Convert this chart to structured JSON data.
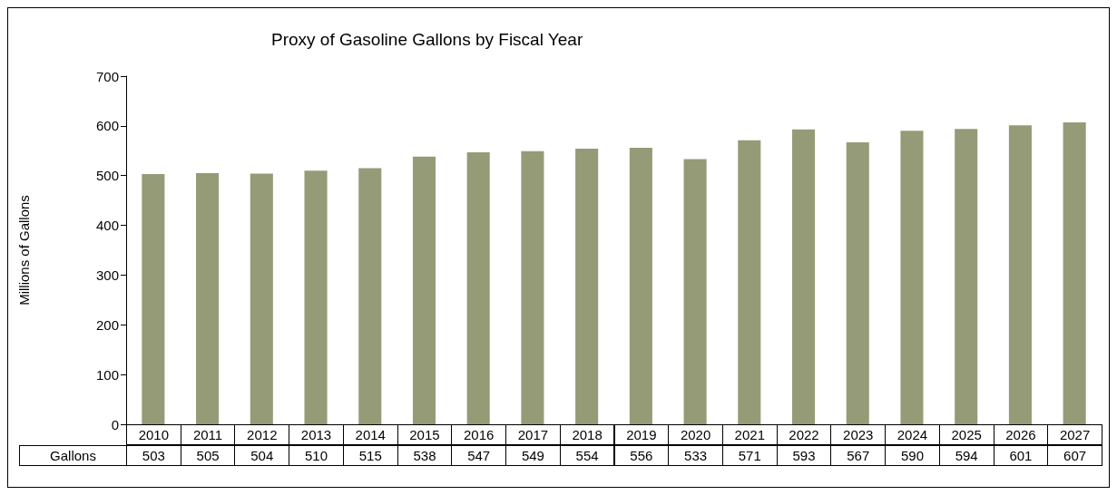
{
  "chart_data": {
    "type": "bar",
    "title": "Proxy of Gasoline Gallons by Fiscal Year",
    "ylabel": "Millions of Gallons",
    "categories": [
      "2010",
      "2011",
      "2012",
      "2013",
      "2014",
      "2015",
      "2016",
      "2017",
      "2018",
      "2019",
      "2020",
      "2021",
      "2022",
      "2023",
      "2024",
      "2025",
      "2026",
      "2027"
    ],
    "series": [
      {
        "name": "Gallons",
        "color": "#969b77",
        "values": [
          503,
          505,
          504,
          510,
          515,
          538,
          547,
          549,
          554,
          556,
          533,
          571,
          593,
          567,
          590,
          594,
          601,
          607
        ]
      }
    ],
    "ylim": [
      0,
      700
    ],
    "yticks": [
      0,
      100,
      200,
      300,
      400,
      500,
      600,
      700
    ],
    "data_labels": true,
    "grid": false,
    "legend": false
  }
}
